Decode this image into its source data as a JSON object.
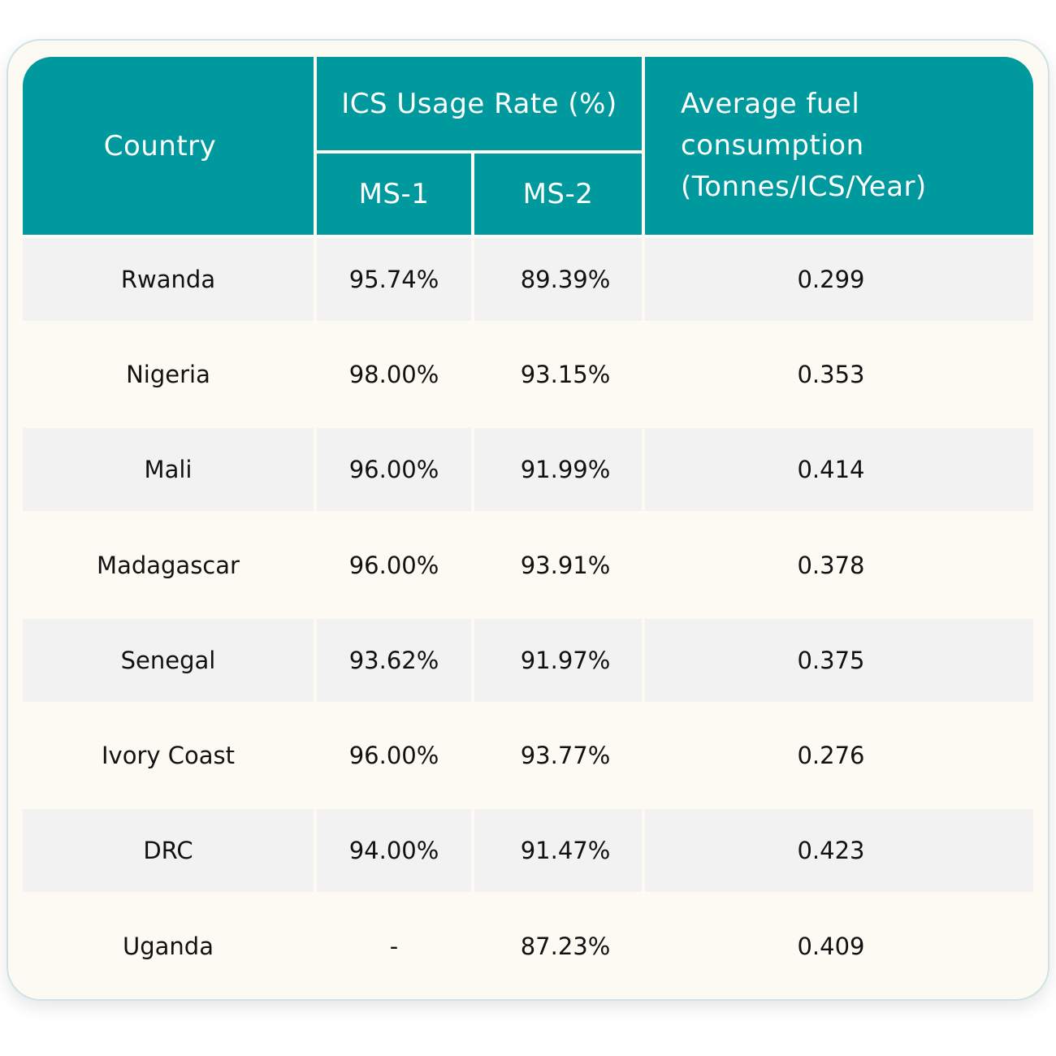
{
  "table": {
    "header": {
      "country": "Country",
      "ics_usage_rate": "ICS Usage Rate (%)",
      "ms1": "MS-1",
      "ms2": "MS-2",
      "fuel_line1": "Average fuel",
      "fuel_line2": "consumption",
      "fuel_line3": "(Tonnes/ICS/Year)"
    },
    "rows": [
      {
        "country": "Rwanda",
        "ms1": "95.74%",
        "ms2": "89.39%",
        "fuel": "0.299"
      },
      {
        "country": "Nigeria",
        "ms1": "98.00%",
        "ms2": "93.15%",
        "fuel": "0.353"
      },
      {
        "country": "Mali",
        "ms1": "96.00%",
        "ms2": "91.99%",
        "fuel": "0.414"
      },
      {
        "country": "Madagascar",
        "ms1": "96.00%",
        "ms2": "93.91%",
        "fuel": "0.378"
      },
      {
        "country": "Senegal",
        "ms1": "93.62%",
        "ms2": "91.97%",
        "fuel": "0.375"
      },
      {
        "country": "Ivory Coast",
        "ms1": "96.00%",
        "ms2": "93.77%",
        "fuel": "0.276"
      },
      {
        "country": "DRC",
        "ms1": "94.00%",
        "ms2": "91.47%",
        "fuel": "0.423"
      },
      {
        "country": "Uganda",
        "ms1": "-",
        "ms2": "87.23%",
        "fuel": "0.409"
      }
    ],
    "colors": {
      "header_bg": "#00999e",
      "header_text": "#ffffff",
      "row_odd_bg": "#f2f2f2",
      "row_even_bg": "#fcfaf2",
      "card_border": "#cfe3e6"
    }
  }
}
